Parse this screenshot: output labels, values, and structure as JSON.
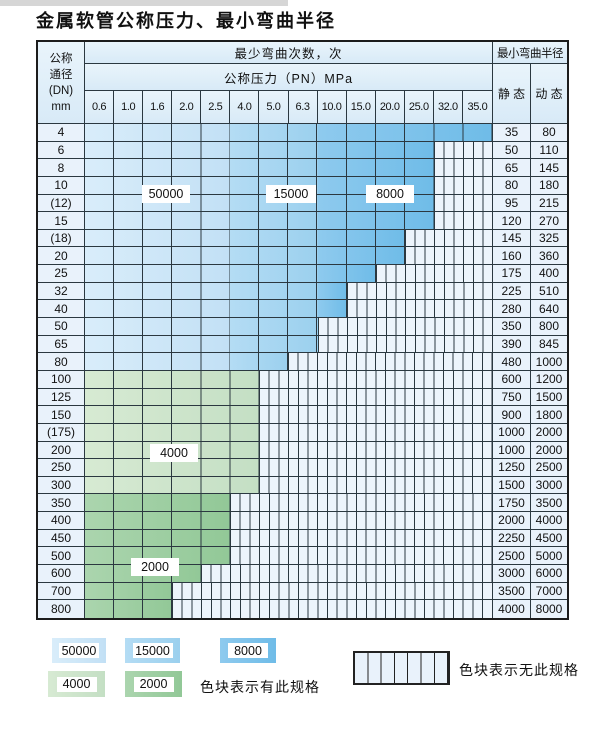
{
  "page": {
    "title": "金属软管公称压力、最小弯曲半径"
  },
  "table": {
    "header": {
      "dn_lines": [
        "公称",
        "通径",
        "(DN)",
        "mm"
      ],
      "cycles": "最少弯曲次数，次",
      "pn": "公称压力（PN）MPa",
      "pressures": [
        "0.6",
        "1.0",
        "1.6",
        "2.0",
        "2.5",
        "4.0",
        "5.0",
        "6.3",
        "10.0",
        "15.0",
        "20.0",
        "25.0",
        "32.0",
        "35.0"
      ],
      "radius": "最小弯曲半径",
      "static_label": "静 态",
      "dynamic_label": "动 态"
    },
    "rows": [
      {
        "dn": "4",
        "spec_cols": 14,
        "palette": "blue",
        "static": "35",
        "dynamic": "80"
      },
      {
        "dn": "6",
        "spec_cols": 12,
        "palette": "blue",
        "static": "50",
        "dynamic": "110"
      },
      {
        "dn": "8",
        "spec_cols": 12,
        "palette": "blue",
        "static": "65",
        "dynamic": "145"
      },
      {
        "dn": "10",
        "spec_cols": 12,
        "palette": "blue",
        "static": "80",
        "dynamic": "180"
      },
      {
        "dn": "(12)",
        "spec_cols": 12,
        "palette": "blue",
        "static": "95",
        "dynamic": "215"
      },
      {
        "dn": "15",
        "spec_cols": 12,
        "palette": "blue",
        "static": "120",
        "dynamic": "270"
      },
      {
        "dn": "(18)",
        "spec_cols": 11,
        "palette": "blue",
        "static": "145",
        "dynamic": "325"
      },
      {
        "dn": "20",
        "spec_cols": 11,
        "palette": "blue",
        "static": "160",
        "dynamic": "360"
      },
      {
        "dn": "25",
        "spec_cols": 10,
        "palette": "blue",
        "static": "175",
        "dynamic": "400"
      },
      {
        "dn": "32",
        "spec_cols": 9,
        "palette": "blue",
        "static": "225",
        "dynamic": "510"
      },
      {
        "dn": "40",
        "spec_cols": 9,
        "palette": "blue",
        "static": "280",
        "dynamic": "640"
      },
      {
        "dn": "50",
        "spec_cols": 8,
        "palette": "blue",
        "static": "350",
        "dynamic": "800"
      },
      {
        "dn": "65",
        "spec_cols": 8,
        "palette": "blue",
        "static": "390",
        "dynamic": "845"
      },
      {
        "dn": "80",
        "spec_cols": 7,
        "palette": "blue",
        "static": "480",
        "dynamic": "1000"
      },
      {
        "dn": "100",
        "spec_cols": 6,
        "palette": "green4000",
        "static": "600",
        "dynamic": "1200"
      },
      {
        "dn": "125",
        "spec_cols": 6,
        "palette": "green4000",
        "static": "750",
        "dynamic": "1500"
      },
      {
        "dn": "150",
        "spec_cols": 6,
        "palette": "green4000",
        "static": "900",
        "dynamic": "1800"
      },
      {
        "dn": "(175)",
        "spec_cols": 6,
        "palette": "green4000",
        "static": "1000",
        "dynamic": "2000"
      },
      {
        "dn": "200",
        "spec_cols": 6,
        "palette": "green4000",
        "static": "1000",
        "dynamic": "2000"
      },
      {
        "dn": "250",
        "spec_cols": 6,
        "palette": "green4000",
        "static": "1250",
        "dynamic": "2500"
      },
      {
        "dn": "300",
        "spec_cols": 6,
        "palette": "green4000",
        "static": "1500",
        "dynamic": "3000"
      },
      {
        "dn": "350",
        "spec_cols": 5,
        "palette": "green2000",
        "static": "1750",
        "dynamic": "3500"
      },
      {
        "dn": "400",
        "spec_cols": 5,
        "palette": "green2000",
        "static": "2000",
        "dynamic": "4000"
      },
      {
        "dn": "450",
        "spec_cols": 5,
        "palette": "green2000",
        "static": "2250",
        "dynamic": "4500"
      },
      {
        "dn": "500",
        "spec_cols": 5,
        "palette": "green2000",
        "static": "2500",
        "dynamic": "5000"
      },
      {
        "dn": "600",
        "spec_cols": 4,
        "palette": "green2000",
        "static": "3000",
        "dynamic": "6000"
      },
      {
        "dn": "700",
        "spec_cols": 3,
        "palette": "green2000",
        "static": "3500",
        "dynamic": "7000"
      },
      {
        "dn": "800",
        "spec_cols": 3,
        "palette": "green2000",
        "static": "4000",
        "dynamic": "8000"
      }
    ]
  },
  "cycle_labels": [
    "50000",
    "15000",
    "8000",
    "4000",
    "2000"
  ],
  "legend": {
    "has_spec": [
      {
        "value": "50000",
        "band": "blue_50000"
      },
      {
        "value": "15000",
        "band": "blue_15000"
      },
      {
        "value": "8000",
        "band": "blue_8000"
      },
      {
        "value": "4000",
        "band": "green_4000"
      },
      {
        "value": "2000",
        "band": "green_2000"
      }
    ],
    "has_spec_text": "色块表示有此规格",
    "no_spec_text": "色块表示无此规格"
  },
  "colors": {
    "blue_50000": [
      "#d9edfa",
      "#c2e0f5"
    ],
    "blue_15000": [
      "#b4dcf4",
      "#9bd0ee"
    ],
    "blue_8000": [
      "#8ecaee",
      "#6fbce8"
    ],
    "green_4000": [
      "#d7ead3",
      "#c4dfc4"
    ],
    "green_2000": [
      "#abd5ae",
      "#92c897"
    ],
    "empty_bg": "#edf4fb",
    "grid": "#2b3840",
    "cell_bg": "#e9f2fb"
  }
}
